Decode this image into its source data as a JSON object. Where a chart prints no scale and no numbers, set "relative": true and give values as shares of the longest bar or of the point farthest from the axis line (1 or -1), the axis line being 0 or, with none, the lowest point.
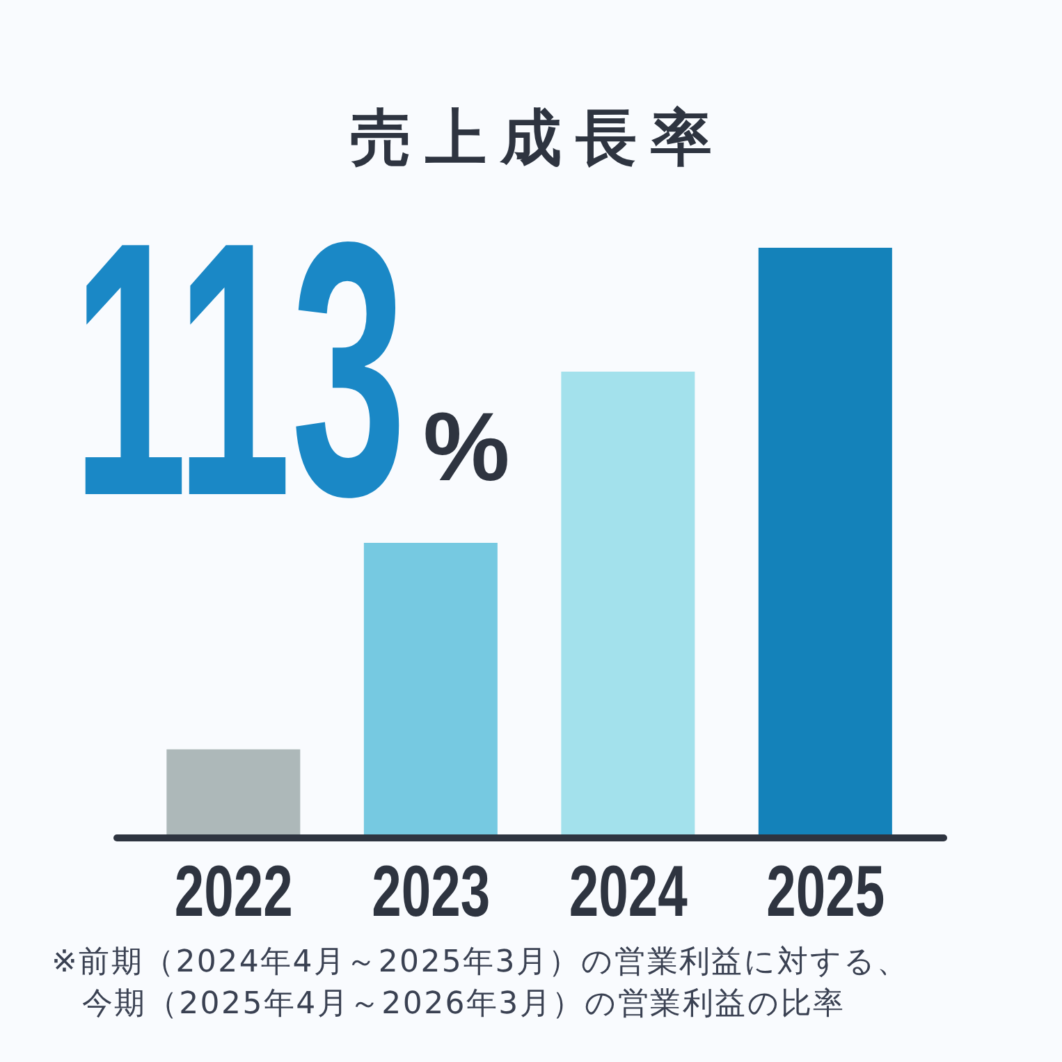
{
  "chart_data": {
    "type": "bar",
    "title": "売上成長率",
    "categories": [
      "2022",
      "2023",
      "2024",
      "2025"
    ],
    "values": [
      0.15,
      0.5,
      0.79,
      1
    ],
    "colors": [
      "#adb8b9",
      "#76c9e1",
      "#a3e1ec",
      "#1482ba"
    ],
    "relative": true,
    "annotations": [
      "113%",
      "※前期（2024年4月～2025年3月）の営業利益に対する、",
      "今期（2025年4月～2026年3月）の営業利益の比率"
    ]
  }
}
